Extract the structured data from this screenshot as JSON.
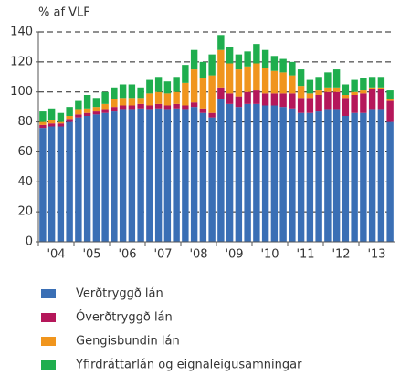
{
  "chart_data": {
    "type": "stacked_bar",
    "y_label": "% af VLF",
    "categories": [
      "'04",
      null,
      null,
      null,
      "'05",
      null,
      null,
      null,
      "'06",
      null,
      null,
      null,
      "'07",
      null,
      null,
      null,
      "'08",
      null,
      null,
      null,
      "'09",
      null,
      null,
      null,
      "'10",
      null,
      null,
      null,
      "'11",
      null,
      null,
      null,
      "'12",
      null,
      null,
      null,
      "'13",
      null,
      null,
      null
    ],
    "ylim": [
      0,
      140
    ],
    "yticks": [
      0,
      20,
      40,
      60,
      80,
      100,
      120,
      140
    ],
    "grid": true,
    "series": [
      {
        "name": "Verðtryggð lán",
        "color": "#3a6fb5",
        "values": [
          76,
          77,
          77,
          80,
          83,
          84,
          85,
          86,
          87,
          88,
          88,
          89,
          88,
          89,
          88,
          89,
          88,
          90,
          86,
          83,
          95,
          92,
          90,
          92,
          92,
          91,
          91,
          90,
          89,
          86,
          86,
          87,
          88,
          88,
          84,
          86,
          86,
          88,
          88,
          80
        ]
      },
      {
        "name": "Óverðtryggð lán",
        "color": "#b5175a",
        "values": [
          2,
          2,
          2,
          2,
          2,
          2,
          2,
          2,
          3,
          3,
          3,
          3,
          3,
          3,
          3,
          3,
          3,
          3,
          3,
          3,
          8,
          7,
          7,
          8,
          9,
          8,
          8,
          9,
          10,
          10,
          10,
          11,
          12,
          12,
          12,
          12,
          13,
          14,
          14,
          14
        ]
      },
      {
        "name": "Gengisbundin lán",
        "color": "#f0951d",
        "values": [
          2,
          2,
          1,
          2,
          3,
          3,
          3,
          4,
          5,
          5,
          5,
          4,
          8,
          8,
          8,
          8,
          15,
          22,
          20,
          25,
          25,
          20,
          18,
          17,
          18,
          17,
          15,
          14,
          12,
          8,
          3,
          3,
          3,
          3,
          2,
          2,
          2,
          1,
          1,
          1
        ]
      },
      {
        "name": "Yfirdráttarlán og eignaleigusamningar",
        "color": "#1fae4e",
        "values": [
          7,
          8,
          6,
          6,
          6,
          9,
          6,
          8,
          8,
          9,
          9,
          7,
          9,
          10,
          8,
          10,
          12,
          13,
          11,
          14,
          10,
          11,
          10,
          10,
          13,
          12,
          10,
          9,
          9,
          11,
          9,
          9,
          10,
          12,
          7,
          8,
          8,
          7,
          7,
          6
        ]
      }
    ]
  }
}
